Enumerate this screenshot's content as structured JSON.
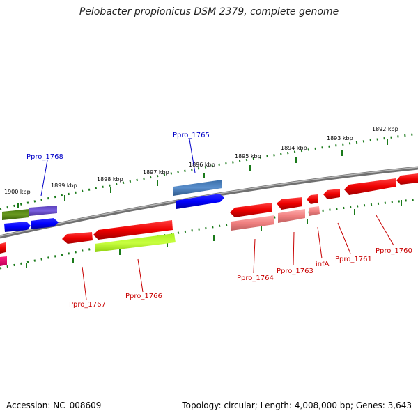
{
  "header": {
    "title": "Pelobacter propionicus DSM 2379, complete genome"
  },
  "footer": {
    "accession": "Accession: NC_008609",
    "topology": "Topology: circular; Length: 4,008,000 bp; Genes: 3,643"
  },
  "scale_labels": [
    "1900 kbp",
    "1899 kbp",
    "1898 kbp",
    "1897 kbp",
    "1896 kbp",
    "1895 kbp",
    "1894 kbp",
    "1893 kbp",
    "1892 kbp"
  ],
  "gene_labels": {
    "Ppro_1768": "Ppro_1768",
    "Ppro_1765": "Ppro_1765",
    "Ppro_1767": "Ppro_1767",
    "Ppro_1766": "Ppro_1766",
    "Ppro_1764": "Ppro_1764",
    "Ppro_1763": "Ppro_1763",
    "infA": "infA",
    "Ppro_1761": "Ppro_1761",
    "Ppro_1760": "Ppro_1760"
  },
  "colors": {
    "plus_strand_label": "#0000c8",
    "minus_strand_label": "#c80000",
    "backbone": "#808080",
    "tick": "#1a7a1a"
  }
}
